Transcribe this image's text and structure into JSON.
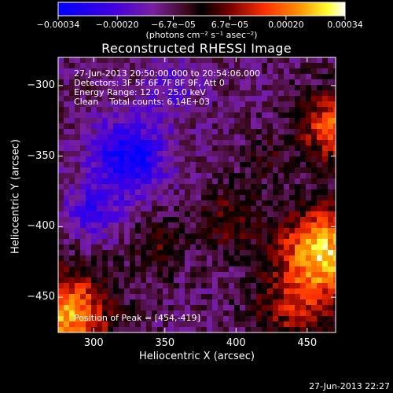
{
  "chart_data": {
    "type": "heatmap",
    "title": "Reconstructed RHESSI Image",
    "xlabel": "Heliocentric X (arcsec)",
    "ylabel": "Heliocentric Y (arcsec)",
    "xlim": [
      275,
      470
    ],
    "ylim": [
      -475,
      -280
    ],
    "x_ticks": [
      300,
      350,
      400,
      450
    ],
    "x_tick_labels": [
      "300",
      "350",
      "400",
      "450"
    ],
    "y_ticks": [
      -300,
      -350,
      -400,
      -450
    ],
    "y_tick_labels": [
      "−300",
      "−350",
      "−400",
      "−450"
    ],
    "colorbar": {
      "range": [
        -0.00034,
        0.00034
      ],
      "tick_values": [
        -0.00034,
        -0.0002,
        -6.7e-05,
        6.7e-05,
        0.0002,
        0.00034
      ],
      "tick_labels": [
        "−0.00034",
        "−0.00020",
        "−6.7e−05",
        "6.7e−05",
        "0.00020",
        "0.00034"
      ],
      "unit": "(photons cm⁻² s⁻¹ asec⁻²)",
      "colormap": [
        "#0000ff",
        "#4400dd",
        "#7a1fa0",
        "#3a0a1a",
        "#000000",
        "#7a0000",
        "#ff3000",
        "#ff9000",
        "#ffff30",
        "#ffffff"
      ]
    },
    "annotations": [
      "27-Jun-2013 20:50:00.000 to 20:54:06.000",
      "Detectors: 3F 5F 6F 7F 8F 9F, Att 0",
      "Energy Range: 12.0 - 25.0 keV",
      "Clean    Total counts: 6.14E+03"
    ],
    "peak_label": "Position of Peak = [454,-419]",
    "peak_position": [
      454,
      -419
    ],
    "bright_regions": [
      {
        "name": "upper-right limb emission",
        "x": 460,
        "y": -330,
        "level": 0.00025
      },
      {
        "name": "lower-right limb emission",
        "x": 455,
        "y": -420,
        "level": 0.00034
      },
      {
        "name": "lower-left emission",
        "x": 285,
        "y": -460,
        "level": 0.0003
      },
      {
        "name": "central diagonal band",
        "x": 370,
        "y": -400,
        "level": 0.00012
      }
    ],
    "negative_regions": [
      {
        "name": "upper-left minimum",
        "x": 325,
        "y": -350,
        "level": -0.0003
      },
      {
        "name": "left-center minimum",
        "x": 300,
        "y": -390,
        "level": -0.00022
      }
    ]
  },
  "footer": {
    "timestamp": "27-Jun-2013 22:27"
  }
}
